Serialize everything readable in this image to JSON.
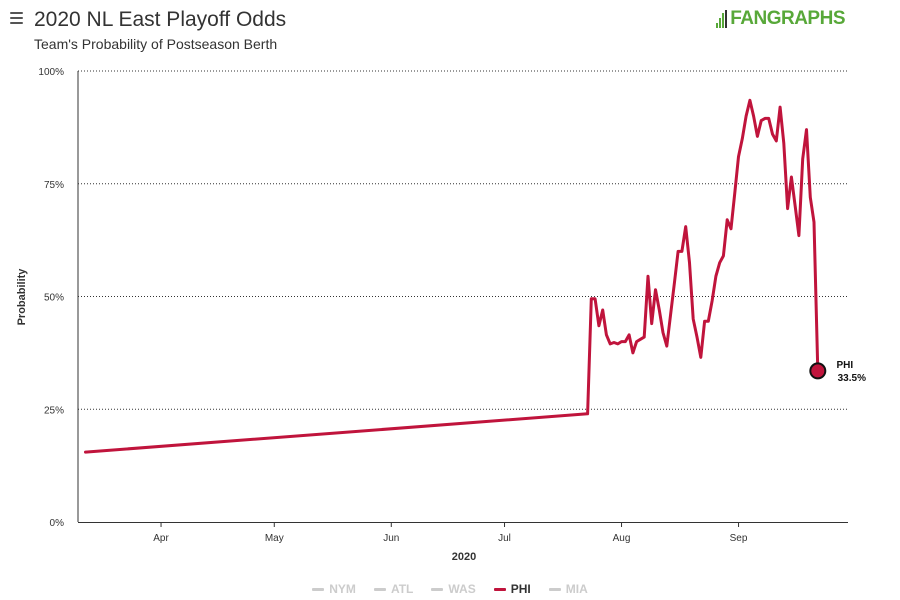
{
  "header": {
    "title": "2020 NL East Playoff Odds",
    "subtitle": "Team's Probability of Postseason Berth",
    "logo_text_a": "FAN",
    "logo_text_b": "GRAPHS"
  },
  "colors": {
    "phi": "#c0143c",
    "inactive": "#cccccc",
    "logo": "#58a839"
  },
  "chart_data": {
    "type": "line",
    "title": "2020 NL East Playoff Odds",
    "subtitle": "Team's Probability of Postseason Berth",
    "xlabel": "2020",
    "ylabel": "Probability",
    "x_ticks": [
      "Apr",
      "May",
      "Jun",
      "Jul",
      "Aug",
      "Sep"
    ],
    "x_tick_dates": [
      "2020-04-01",
      "2020-05-01",
      "2020-06-01",
      "2020-07-01",
      "2020-08-01",
      "2020-09-01"
    ],
    "y_ticks": [
      "0%",
      "25%",
      "50%",
      "75%",
      "100%"
    ],
    "ylim": [
      0,
      100
    ],
    "xlim": [
      "2020-03-10",
      "2020-09-30"
    ],
    "grid": "horizontal dotted",
    "legend_position": "bottom",
    "legend": [
      {
        "name": "NYM",
        "active": false
      },
      {
        "name": "ATL",
        "active": false
      },
      {
        "name": "WAS",
        "active": false
      },
      {
        "name": "PHI",
        "active": true
      },
      {
        "name": "MIA",
        "active": false
      }
    ],
    "series": [
      {
        "name": "PHI",
        "end_label": "PHI",
        "end_value_label": "33.5%",
        "points": [
          [
            "2020-03-12",
            15.5
          ],
          [
            "2020-07-23",
            24.0
          ],
          [
            "2020-07-24",
            49.5
          ],
          [
            "2020-07-25",
            49.5
          ],
          [
            "2020-07-26",
            43.5
          ],
          [
            "2020-07-27",
            47.0
          ],
          [
            "2020-07-28",
            41.5
          ],
          [
            "2020-07-29",
            39.5
          ],
          [
            "2020-07-30",
            39.8
          ],
          [
            "2020-07-31",
            39.5
          ],
          [
            "2020-08-01",
            40.0
          ],
          [
            "2020-08-02",
            40.0
          ],
          [
            "2020-08-03",
            41.5
          ],
          [
            "2020-08-04",
            37.5
          ],
          [
            "2020-08-05",
            40.0
          ],
          [
            "2020-08-06",
            40.5
          ],
          [
            "2020-08-07",
            41.0
          ],
          [
            "2020-08-08",
            54.5
          ],
          [
            "2020-08-09",
            44.0
          ],
          [
            "2020-08-10",
            51.5
          ],
          [
            "2020-08-11",
            47.0
          ],
          [
            "2020-08-12",
            42.0
          ],
          [
            "2020-08-13",
            39.0
          ],
          [
            "2020-08-14",
            46.0
          ],
          [
            "2020-08-15",
            53.0
          ],
          [
            "2020-08-16",
            60.0
          ],
          [
            "2020-08-17",
            60.0
          ],
          [
            "2020-08-18",
            65.5
          ],
          [
            "2020-08-19",
            57.5
          ],
          [
            "2020-08-20",
            45.0
          ],
          [
            "2020-08-21",
            41.0
          ],
          [
            "2020-08-22",
            36.5
          ],
          [
            "2020-08-23",
            44.5
          ],
          [
            "2020-08-24",
            44.5
          ],
          [
            "2020-08-25",
            49.0
          ],
          [
            "2020-08-26",
            54.5
          ],
          [
            "2020-08-27",
            57.5
          ],
          [
            "2020-08-28",
            59.0
          ],
          [
            "2020-08-29",
            67.0
          ],
          [
            "2020-08-30",
            65.0
          ],
          [
            "2020-08-31",
            73.0
          ],
          [
            "2020-09-01",
            81.0
          ],
          [
            "2020-09-02",
            85.0
          ],
          [
            "2020-09-03",
            90.0
          ],
          [
            "2020-09-04",
            93.5
          ],
          [
            "2020-09-05",
            90.0
          ],
          [
            "2020-09-06",
            85.5
          ],
          [
            "2020-09-07",
            89.0
          ],
          [
            "2020-09-08",
            89.5
          ],
          [
            "2020-09-09",
            89.5
          ],
          [
            "2020-09-10",
            86.0
          ],
          [
            "2020-09-11",
            84.5
          ],
          [
            "2020-09-12",
            92.0
          ],
          [
            "2020-09-13",
            84.0
          ],
          [
            "2020-09-14",
            69.5
          ],
          [
            "2020-09-15",
            76.5
          ],
          [
            "2020-09-16",
            70.0
          ],
          [
            "2020-09-17",
            63.5
          ],
          [
            "2020-09-18",
            80.5
          ],
          [
            "2020-09-19",
            87.0
          ],
          [
            "2020-09-20",
            72.0
          ],
          [
            "2020-09-21",
            66.5
          ],
          [
            "2020-09-22",
            33.5
          ]
        ]
      }
    ]
  }
}
